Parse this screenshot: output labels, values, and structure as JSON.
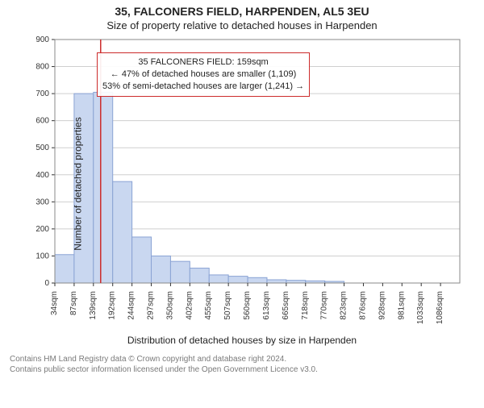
{
  "title": "35, FALCONERS FIELD, HARPENDEN, AL5 3EU",
  "subtitle": "Size of property relative to detached houses in Harpenden",
  "ylabel": "Number of detached properties",
  "xlabel": "Distribution of detached houses by size in Harpenden",
  "footer_line1": "Contains HM Land Registry data © Crown copyright and database right 2024.",
  "footer_line2": "Contains public sector information licensed under the Open Government Licence v3.0.",
  "annotation": {
    "line1": "35 FALCONERS FIELD: 159sqm",
    "line2": "← 47% of detached houses are smaller (1,109)",
    "line3": "53% of semi-detached houses are larger (1,241) →"
  },
  "chart": {
    "type": "histogram",
    "background_color": "#ffffff",
    "plot_border_color": "#888888",
    "grid_color": "#cfcfcf",
    "bar_fill": "#c9d7f0",
    "bar_stroke": "#8aa3d4",
    "marker_line_color": "#cc2b2b",
    "marker_value": 159,
    "ylim": [
      0,
      900
    ],
    "ytick_step": 100,
    "x_start": 34,
    "x_bin_width": 52.63,
    "x_labels": [
      "34sqm",
      "87sqm",
      "139sqm",
      "192sqm",
      "244sqm",
      "297sqm",
      "350sqm",
      "402sqm",
      "455sqm",
      "507sqm",
      "560sqm",
      "613sqm",
      "665sqm",
      "718sqm",
      "770sqm",
      "823sqm",
      "876sqm",
      "928sqm",
      "981sqm",
      "1033sqm",
      "1086sqm"
    ],
    "values": [
      105,
      700,
      705,
      375,
      170,
      100,
      80,
      55,
      30,
      25,
      20,
      12,
      10,
      8,
      6,
      0,
      0,
      0,
      0,
      0,
      0
    ],
    "tick_fontsize": 10,
    "label_fontsize": 12
  }
}
